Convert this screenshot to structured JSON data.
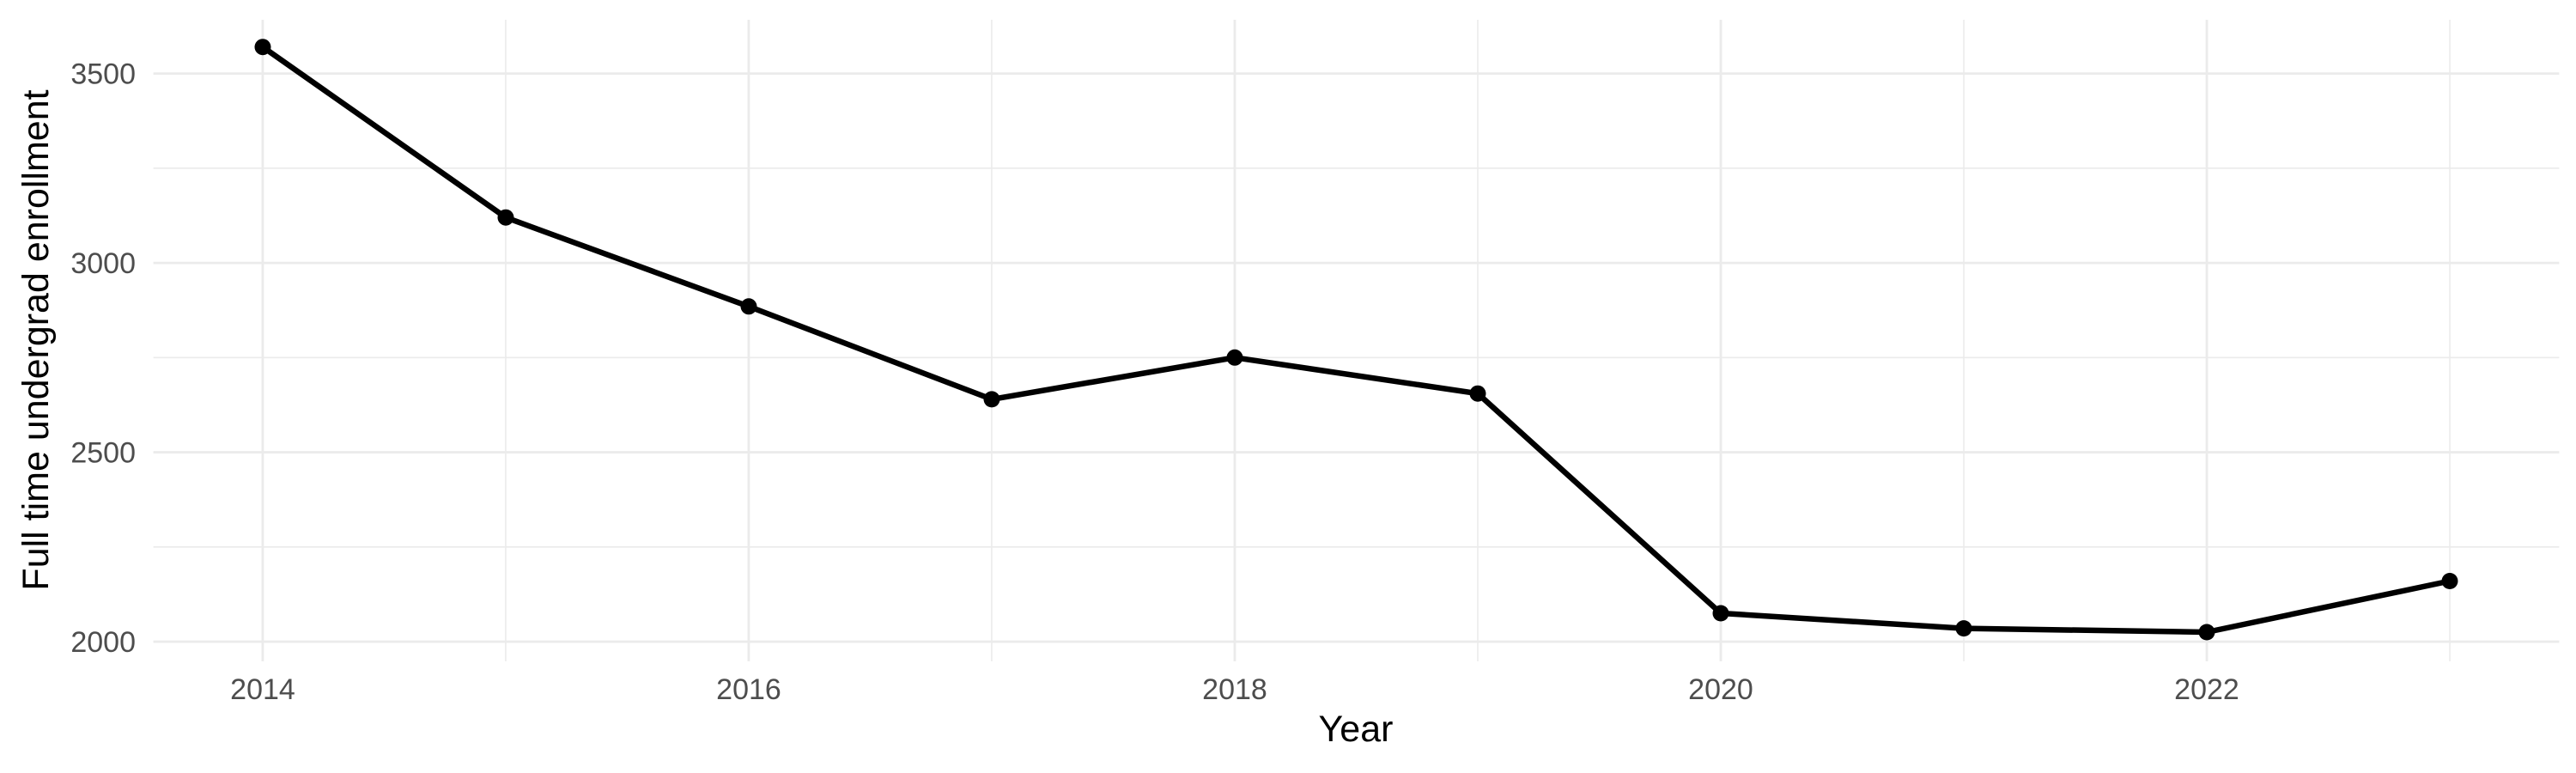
{
  "chart_data": {
    "type": "line",
    "title": "",
    "xlabel": "Year",
    "ylabel": "Full time undergrad enrollment",
    "x": [
      2014,
      2015,
      2016,
      2017,
      2018,
      2019,
      2020,
      2021,
      2022,
      2023
    ],
    "values": [
      3570,
      3120,
      2885,
      2640,
      2750,
      2655,
      2075,
      2035,
      2025,
      2160
    ],
    "series_name": "Full time undergrad enrollment",
    "xlim": [
      2013.55,
      2023.45
    ],
    "ylim": [
      1948,
      3642
    ],
    "x_major_ticks": [
      2014,
      2016,
      2018,
      2020,
      2022
    ],
    "x_major_tick_labels": [
      "2014",
      "2016",
      "2018",
      "2020",
      "2022"
    ],
    "x_minor_ticks": [
      2015,
      2017,
      2019,
      2021,
      2023
    ],
    "y_major_ticks": [
      2000,
      2500,
      3000,
      3500
    ],
    "y_major_tick_labels": [
      "2000",
      "2500",
      "3000",
      "3500"
    ],
    "y_minor_ticks": [
      2250,
      2750,
      3250
    ],
    "grid": "on",
    "legend": "none",
    "marker": "filled-circle",
    "colors": {
      "background": "#FFFFFF",
      "gridline": "#EBEBEB",
      "line": "#000000",
      "point": "#000000",
      "tick_text": "#4D4D4D",
      "axis_title_text": "#000000"
    }
  }
}
